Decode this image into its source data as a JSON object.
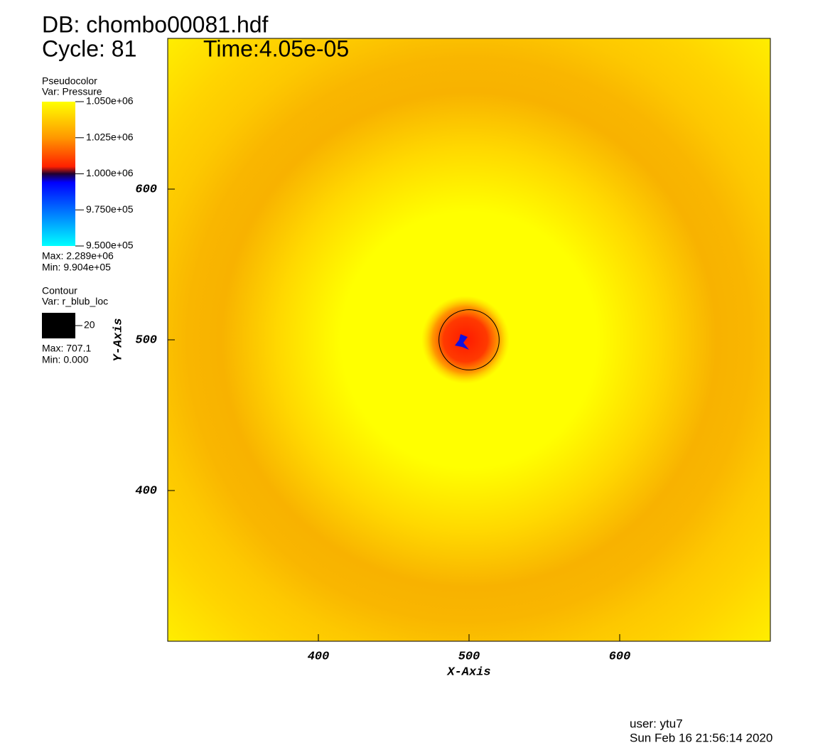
{
  "header": {
    "db": "DB: chombo00081.hdf",
    "cycle": "Cycle: 81",
    "time": "Time:4.05e-05"
  },
  "chart_data": {
    "type": "pseudocolor",
    "x_label": "X-Axis",
    "y_label": "Y-Axis",
    "xlim": [
      300,
      700
    ],
    "ylim": [
      300,
      700
    ],
    "xticks": [
      400,
      500,
      600
    ],
    "yticks": [
      400,
      500,
      600
    ],
    "pseudocolor": {
      "title": "Pseudocolor",
      "var": "Var: Pressure",
      "colorbar_lim": [
        950000,
        1050000
      ],
      "ticks": [
        {
          "value": 1050000,
          "label": "1.050e+06"
        },
        {
          "value": 1025000,
          "label": "1.025e+06"
        },
        {
          "value": 1000000,
          "label": "1.000e+06"
        },
        {
          "value": 975000,
          "label": "9.750e+05"
        },
        {
          "value": 950000,
          "label": "9.500e+05"
        }
      ],
      "max": "Max: 2.289e+06",
      "min": "Min: 9.904e+05"
    },
    "contour": {
      "title": "Contour",
      "var": "Var: r_blub_loc",
      "levels": [
        20
      ],
      "max": "Max: 707.1",
      "min": "Min: 0.000"
    }
  },
  "footer": {
    "user": "user: ytu7",
    "date": "Sun Feb 16 21:56:14 2020"
  }
}
